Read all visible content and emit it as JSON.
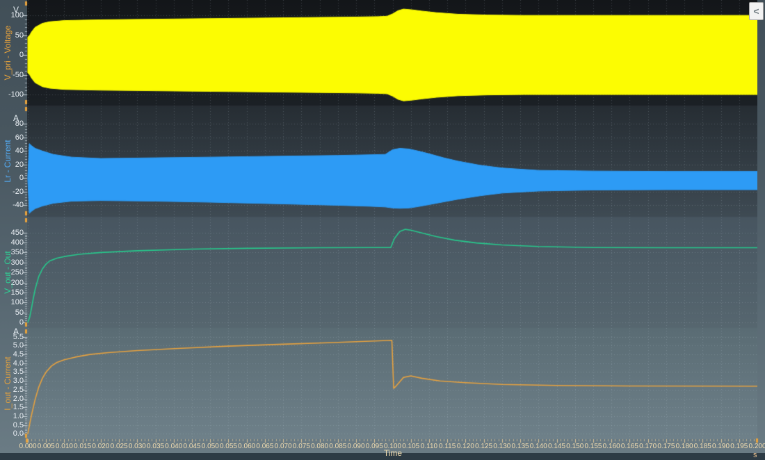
{
  "controls": {
    "collapse_button_glyph": "<"
  },
  "xaxis": {
    "label": "Time",
    "unit": "s",
    "min": 0,
    "max": 0.2,
    "tick_step": 0.005,
    "tick_decimals": 3
  },
  "colors": {
    "vpri_trace": "#fcfc02",
    "lr_trace": "#2d9bf5",
    "vout_trace": "#27c98c",
    "iout_trace": "#e7a23f",
    "axis_tick": "#c9d3d9",
    "x_tick": "#dcc69b",
    "axis_end_marker": "#e8a33c",
    "y_tick_label": "#e9eef3",
    "x_tick_label": "#f2ddb0"
  },
  "chart_data": [
    {
      "type": "area",
      "title": "V_pri - Voltage",
      "unit": "V",
      "trace_color": "#fcfc02",
      "label_color": "#e8a33c",
      "ylim": [
        -128,
        139
      ],
      "yticks": [
        100,
        50,
        0,
        -50,
        -100
      ],
      "tick_decimals": 0,
      "grid": true,
      "x": [
        0,
        0.0005,
        0.001,
        0.002,
        0.004,
        0.006,
        0.01,
        0.02,
        0.04,
        0.06,
        0.08,
        0.09,
        0.096,
        0.0985,
        0.1,
        0.1015,
        0.103,
        0.1055,
        0.108,
        0.112,
        0.118,
        0.126,
        0.136,
        0.15,
        0.175,
        0.2
      ],
      "upper": [
        45,
        50,
        58,
        70,
        80,
        84,
        87,
        89,
        91,
        93,
        95,
        96,
        97,
        98,
        104,
        112,
        116,
        114,
        111,
        107,
        103,
        101,
        100,
        100,
        100,
        100
      ],
      "lower": [
        -45,
        -50,
        -58,
        -70,
        -80,
        -84,
        -87,
        -89,
        -91,
        -93,
        -95,
        -96,
        -97,
        -98,
        -104,
        -112,
        -116,
        -114,
        -111,
        -107,
        -103,
        -101,
        -100,
        -100,
        -100,
        -100
      ]
    },
    {
      "type": "area",
      "title": "Lr - Current",
      "unit": "A",
      "trace_color": "#2d9bf5",
      "label_color": "#54aef7",
      "ylim": [
        -57,
        107
      ],
      "yticks": [
        80,
        60,
        40,
        20,
        0,
        -20,
        -40
      ],
      "tick_decimals": 0,
      "grid": true,
      "x": [
        0,
        0.0004,
        0.001,
        0.002,
        0.004,
        0.007,
        0.012,
        0.02,
        0.035,
        0.05,
        0.07,
        0.085,
        0.094,
        0.098,
        0.1,
        0.102,
        0.1045,
        0.107,
        0.11,
        0.114,
        0.118,
        0.124,
        0.13,
        0.14,
        0.155,
        0.175,
        0.2
      ],
      "upper": [
        3,
        51,
        48,
        44,
        40,
        35,
        31,
        29,
        30,
        31,
        32.5,
        33.5,
        34.5,
        35,
        42,
        44,
        43,
        40,
        36,
        30,
        25,
        19,
        15,
        11.5,
        10.5,
        10,
        10
      ],
      "lower": [
        -3,
        -52,
        -49,
        -45,
        -41,
        -37,
        -34,
        -33,
        -34,
        -35.5,
        -38,
        -40,
        -41.5,
        -42.5,
        -44,
        -44.5,
        -44,
        -42,
        -39,
        -35,
        -31,
        -26,
        -22,
        -19,
        -17.5,
        -17,
        -17
      ]
    },
    {
      "type": "line",
      "title": "V_out - Out",
      "unit": "",
      "trace_color": "#27c98c",
      "label_color": "#2fd095",
      "ylim": [
        -28,
        529
      ],
      "yticks": [
        450,
        400,
        350,
        300,
        250,
        200,
        150,
        100,
        50,
        0
      ],
      "tick_decimals": 0,
      "grid": true,
      "x": [
        0,
        0.0005,
        0.001,
        0.0015,
        0.002,
        0.003,
        0.004,
        0.005,
        0.006,
        0.008,
        0.01,
        0.014,
        0.02,
        0.03,
        0.045,
        0.06,
        0.08,
        0.095,
        0.0995,
        0.1005,
        0.102,
        0.1035,
        0.105,
        0.108,
        0.112,
        0.117,
        0.123,
        0.13,
        0.14,
        0.155,
        0.175,
        0.2
      ],
      "y": [
        0,
        25,
        70,
        120,
        165,
        230,
        268,
        292,
        308,
        322,
        330,
        341,
        350,
        359,
        367,
        371,
        374,
        375,
        375,
        420,
        456,
        466,
        462,
        448,
        430,
        412,
        398,
        388,
        380,
        375,
        374,
        374
      ]
    },
    {
      "type": "line",
      "title": "I_out - Current",
      "unit": "A",
      "trace_color": "#e7a23f",
      "label_color": "#e8a33c",
      "ylim": [
        -0.3,
        6.0
      ],
      "yticks": [
        5.5,
        5.0,
        4.5,
        4.0,
        3.5,
        3.0,
        2.5,
        2.0,
        1.5,
        1.0,
        0.5,
        0.0
      ],
      "tick_decimals": 1,
      "grid": true,
      "x": [
        0,
        0.0005,
        0.001,
        0.002,
        0.003,
        0.004,
        0.005,
        0.0065,
        0.008,
        0.01,
        0.013,
        0.017,
        0.022,
        0.03,
        0.042,
        0.055,
        0.07,
        0.085,
        0.095,
        0.0998,
        0.1003,
        0.101,
        0.103,
        0.105,
        0.108,
        0.113,
        0.12,
        0.13,
        0.145,
        0.165,
        0.2
      ],
      "y": [
        0,
        0.55,
        1.05,
        1.95,
        2.65,
        3.15,
        3.5,
        3.85,
        4.05,
        4.2,
        4.35,
        4.5,
        4.6,
        4.72,
        4.85,
        4.97,
        5.08,
        5.18,
        5.26,
        5.3,
        2.58,
        2.72,
        3.2,
        3.28,
        3.15,
        3.0,
        2.9,
        2.8,
        2.74,
        2.71,
        2.7
      ]
    }
  ]
}
